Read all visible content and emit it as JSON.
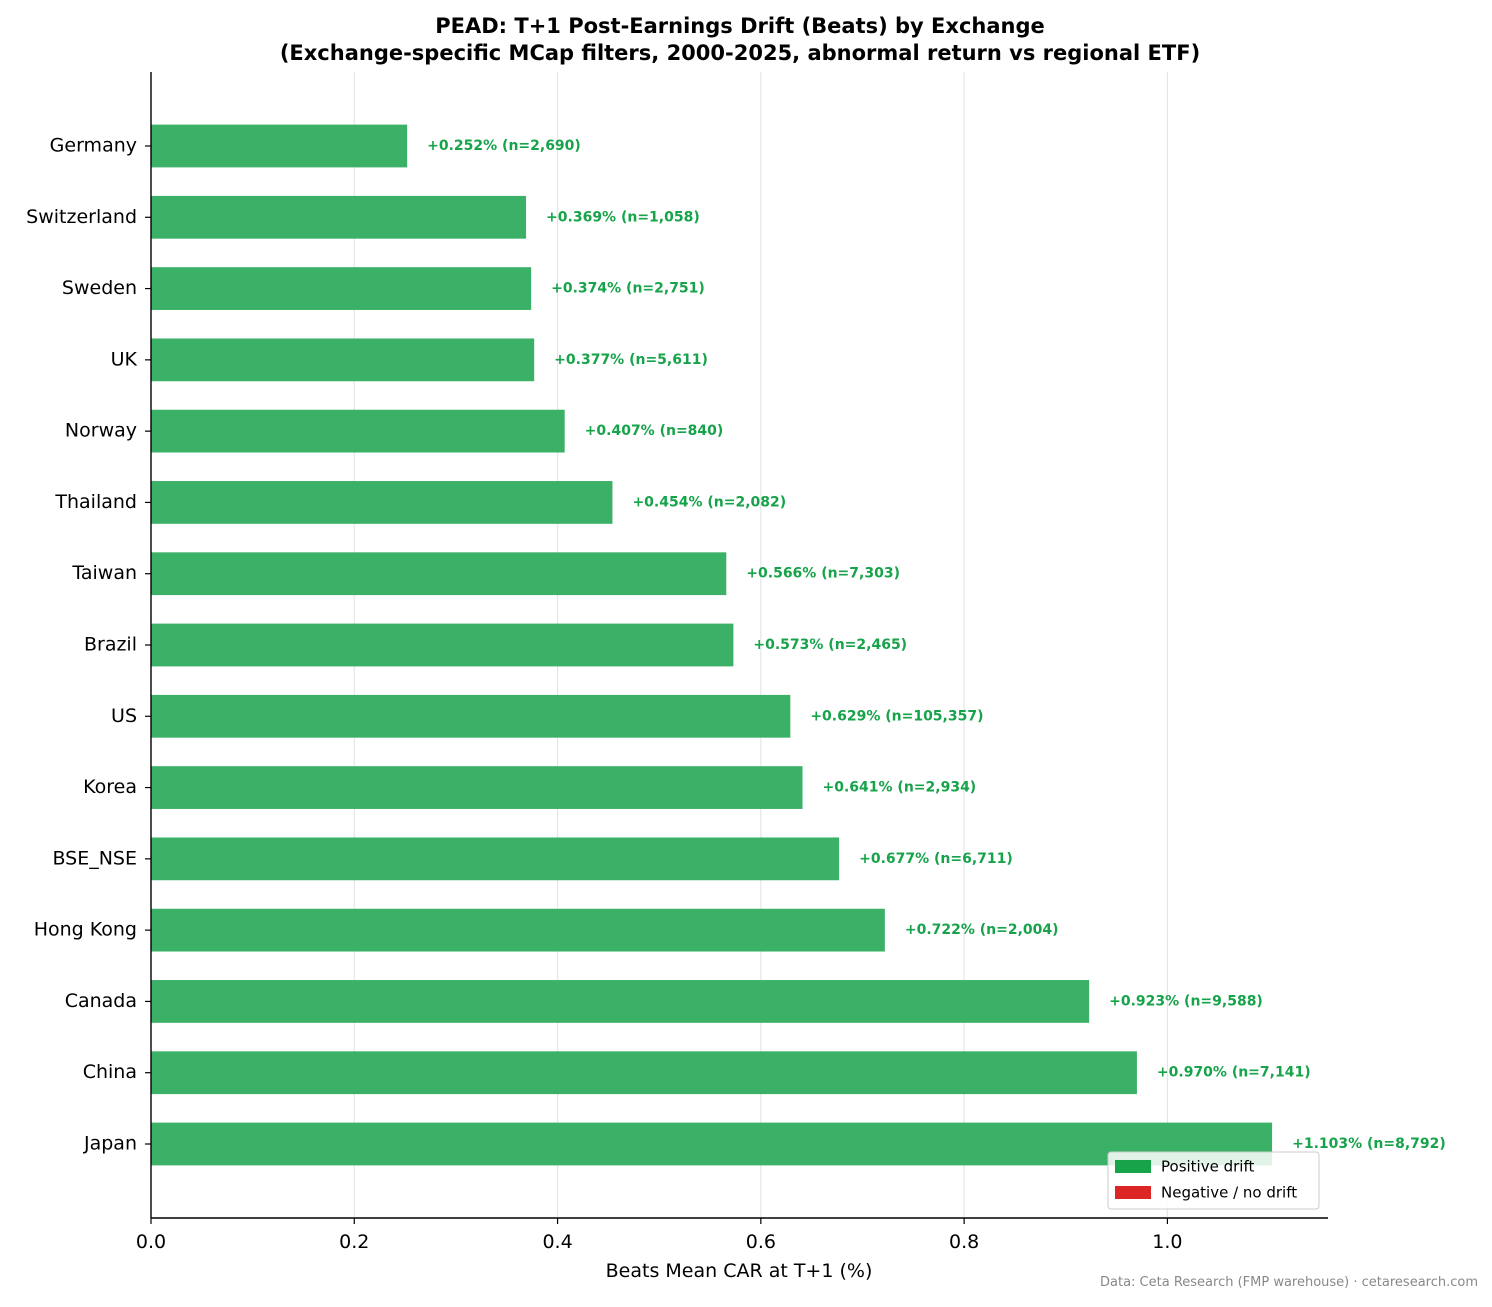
{
  "chart_data": {
    "type": "bar",
    "orientation": "horizontal",
    "title": "PEAD: T+1 Post-Earnings Drift (Beats) by Exchange",
    "subtitle": "(Exchange-specific MCap filters, 2000-2025, abnormal return vs regional ETF)",
    "xlabel": "Beats Mean CAR at T+1 (%)",
    "ylabel": "",
    "xlim": [
      0,
      1.158
    ],
    "xticks": [
      0.0,
      0.2,
      0.4,
      0.6,
      0.8,
      1.0
    ],
    "xtick_labels": [
      "0.0",
      "0.2",
      "0.4",
      "0.6",
      "0.8",
      "1.0"
    ],
    "grid": "vertical",
    "legend_position": "bottom-right",
    "categories": [
      "Germany",
      "Switzerland",
      "Sweden",
      "UK",
      "Norway",
      "Thailand",
      "Taiwan",
      "Brazil",
      "US",
      "Korea",
      "BSE_NSE",
      "Hong Kong",
      "Canada",
      "China",
      "Japan"
    ],
    "values": [
      0.252,
      0.369,
      0.374,
      0.377,
      0.407,
      0.454,
      0.566,
      0.573,
      0.629,
      0.641,
      0.677,
      0.722,
      0.923,
      0.97,
      1.103
    ],
    "bar_labels": [
      "+0.252%  (n=2,690)",
      "+0.369%  (n=1,058)",
      "+0.374%  (n=2,751)",
      "+0.377%  (n=5,611)",
      "+0.407%  (n=840)",
      "+0.454%  (n=2,082)",
      "+0.566%  (n=7,303)",
      "+0.573%  (n=2,465)",
      "+0.629%  (n=105,357)",
      "+0.641%  (n=2,934)",
      "+0.677%  (n=6,711)",
      "+0.722%  (n=2,004)",
      "+0.923%  (n=9,588)",
      "+0.970%  (n=7,141)",
      "+1.103%  (n=8,792)"
    ],
    "legend": [
      {
        "label": "Positive drift",
        "color": "#16a34a"
      },
      {
        "label": "Negative / no drift",
        "color": "#dc2626"
      }
    ],
    "colors": {
      "bar": "#3bb067",
      "label": "#16a34a",
      "grid": "#e6e6e6",
      "axis": "#000000"
    }
  },
  "footer": {
    "source": "Data: Ceta Research (FMP warehouse) · cetaresearch.com"
  }
}
